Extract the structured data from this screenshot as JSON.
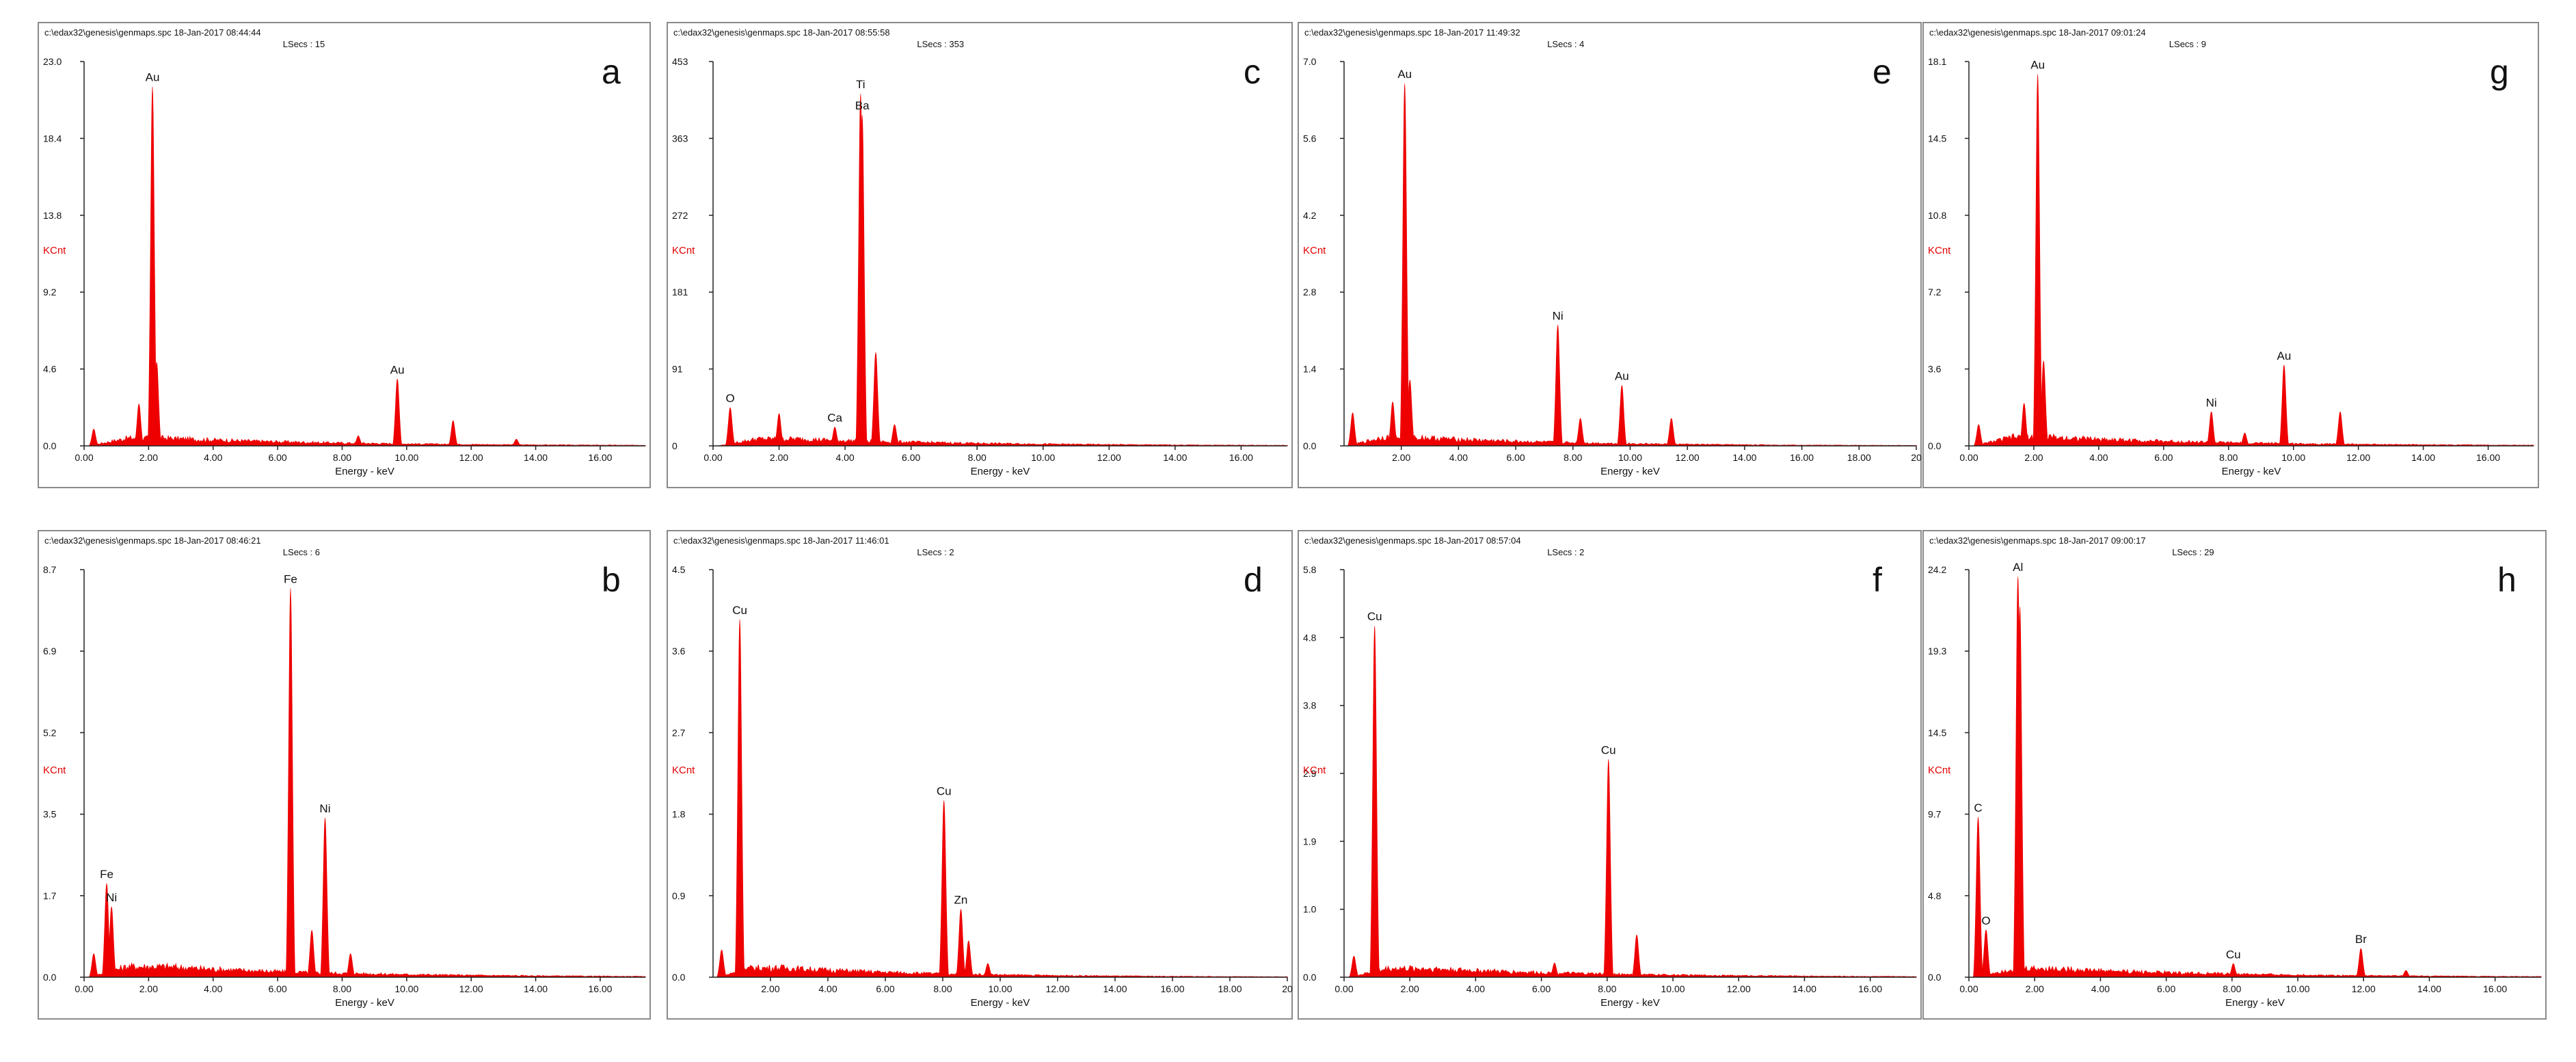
{
  "chart_data": [
    {
      "panel": "a",
      "type": "area",
      "header": "c:\\edax32\\genesis\\genmaps.spc  18-Jan-2017 08:44:44",
      "lsecs": "LSecs : 15",
      "ylabel": "KCnt",
      "xlabel": "Energy - keV",
      "xlim": [
        0,
        17.4
      ],
      "ylim": [
        0,
        23.0
      ],
      "xticks": [
        "0.00",
        "2.00",
        "4.00",
        "6.00",
        "8.00",
        "10.00",
        "12.00",
        "14.00",
        "16.00"
      ],
      "yticks": [
        "0.0",
        "4.6",
        "9.2",
        "13.8",
        "18.4",
        "23.0"
      ],
      "background": 0.45,
      "peaks": [
        {
          "x": 0.3,
          "y": 1.0,
          "label": ""
        },
        {
          "x": 1.7,
          "y": 2.5,
          "label": ""
        },
        {
          "x": 2.12,
          "y": 21.5,
          "label": "Au"
        },
        {
          "x": 2.25,
          "y": 5.0,
          "label": ""
        },
        {
          "x": 8.5,
          "y": 0.6,
          "label": ""
        },
        {
          "x": 9.71,
          "y": 4.0,
          "label": "Au"
        },
        {
          "x": 11.44,
          "y": 1.5,
          "label": ""
        },
        {
          "x": 13.4,
          "y": 0.4,
          "label": ""
        }
      ]
    },
    {
      "panel": "b",
      "type": "area",
      "header": "c:\\edax32\\genesis\\genmaps.spc  18-Jan-2017 08:46:21",
      "lsecs": "LSecs : 6",
      "ylabel": "KCnt",
      "xlabel": "Energy - keV",
      "xlim": [
        0,
        17.4
      ],
      "ylim": [
        0,
        8.7
      ],
      "xticks": [
        "0.00",
        "2.00",
        "4.00",
        "6.00",
        "8.00",
        "10.00",
        "12.00",
        "14.00",
        "16.00"
      ],
      "yticks": [
        "0.0",
        "1.7",
        "3.5",
        "5.2",
        "6.9",
        "8.7"
      ],
      "background": 0.22,
      "peaks": [
        {
          "x": 0.3,
          "y": 0.5,
          "label": ""
        },
        {
          "x": 0.7,
          "y": 2.0,
          "label": "Fe"
        },
        {
          "x": 0.85,
          "y": 1.5,
          "label": "Ni"
        },
        {
          "x": 6.4,
          "y": 8.3,
          "label": "Fe"
        },
        {
          "x": 7.06,
          "y": 1.0,
          "label": ""
        },
        {
          "x": 7.47,
          "y": 3.4,
          "label": "Ni"
        },
        {
          "x": 8.26,
          "y": 0.5,
          "label": ""
        }
      ]
    },
    {
      "panel": "c",
      "type": "area",
      "header": "c:\\edax32\\genesis\\genmaps.spc  18-Jan-2017 08:55:58",
      "lsecs": "LSecs : 353",
      "ylabel": "KCnt",
      "xlabel": "Energy - keV",
      "xlim": [
        0,
        17.4
      ],
      "ylim": [
        0,
        453
      ],
      "xticks": [
        "0.00",
        "2.00",
        "4.00",
        "6.00",
        "8.00",
        "10.00",
        "12.00",
        "14.00",
        "16.00"
      ],
      "yticks": [
        "0",
        "91",
        "181",
        "272",
        "363",
        "453"
      ],
      "background": 8,
      "peaks": [
        {
          "x": 0.52,
          "y": 45,
          "label": "O"
        },
        {
          "x": 2.0,
          "y": 38,
          "label": ""
        },
        {
          "x": 3.69,
          "y": 22,
          "label": "Ca"
        },
        {
          "x": 4.47,
          "y": 415,
          "label": "Ti"
        },
        {
          "x": 4.52,
          "y": 390,
          "label": "Ba"
        },
        {
          "x": 4.93,
          "y": 110,
          "label": ""
        },
        {
          "x": 5.5,
          "y": 25,
          "label": ""
        }
      ]
    },
    {
      "panel": "d",
      "type": "area",
      "header": "c:\\edax32\\genesis\\genmaps.spc  18-Jan-2017 11:46:01",
      "lsecs": "LSecs : 2",
      "ylabel": "KCnt",
      "xlabel": "Energy - keV",
      "xlim": [
        0,
        20
      ],
      "ylim": [
        0,
        4.5
      ],
      "xticks": [
        "2.00",
        "4.00",
        "6.00",
        "8.00",
        "10.00",
        "12.00",
        "14.00",
        "16.00",
        "18.00",
        "20"
      ],
      "yticks": [
        "0.0",
        "0.9",
        "1.8",
        "2.7",
        "3.6",
        "4.5"
      ],
      "background": 0.1,
      "peaks": [
        {
          "x": 0.3,
          "y": 0.3,
          "label": ""
        },
        {
          "x": 0.93,
          "y": 3.95,
          "label": "Cu"
        },
        {
          "x": 8.04,
          "y": 1.95,
          "label": "Cu"
        },
        {
          "x": 8.63,
          "y": 0.75,
          "label": "Zn"
        },
        {
          "x": 8.9,
          "y": 0.4,
          "label": ""
        },
        {
          "x": 9.57,
          "y": 0.15,
          "label": ""
        }
      ]
    },
    {
      "panel": "e",
      "type": "area",
      "header": "c:\\edax32\\genesis\\genmaps.spc  18-Jan-2017 11:49:32",
      "lsecs": "LSecs : 4",
      "ylabel": "KCnt",
      "xlabel": "Energy - keV",
      "xlim": [
        0,
        20
      ],
      "ylim": [
        0,
        7.0
      ],
      "xticks": [
        "2.00",
        "4.00",
        "6.00",
        "8.00",
        "10.00",
        "12.00",
        "14.00",
        "16.00",
        "18.00",
        "20"
      ],
      "yticks": [
        "0.0",
        "1.4",
        "2.8",
        "4.2",
        "5.6",
        "7.0"
      ],
      "background": 0.15,
      "peaks": [
        {
          "x": 0.3,
          "y": 0.6,
          "label": ""
        },
        {
          "x": 1.7,
          "y": 0.8,
          "label": ""
        },
        {
          "x": 2.12,
          "y": 6.6,
          "label": "Au"
        },
        {
          "x": 2.3,
          "y": 1.2,
          "label": ""
        },
        {
          "x": 7.47,
          "y": 2.2,
          "label": "Ni"
        },
        {
          "x": 8.26,
          "y": 0.5,
          "label": ""
        },
        {
          "x": 9.71,
          "y": 1.1,
          "label": "Au"
        },
        {
          "x": 11.44,
          "y": 0.5,
          "label": ""
        }
      ]
    },
    {
      "panel": "f",
      "type": "area",
      "header": "c:\\edax32\\genesis\\genmaps.spc  18-Jan-2017 08:57:04",
      "lsecs": "LSecs : 2",
      "ylabel": "KCnt",
      "xlabel": "Energy - keV",
      "xlim": [
        0,
        17.4
      ],
      "ylim": [
        0,
        5.8
      ],
      "xticks": [
        "0.00",
        "2.00",
        "4.00",
        "6.00",
        "8.00",
        "10.00",
        "12.00",
        "14.00",
        "16.00"
      ],
      "yticks": [
        "0.0",
        "1.0",
        "1.9",
        "2.9",
        "3.8",
        "4.8",
        "5.8"
      ],
      "background": 0.12,
      "peaks": [
        {
          "x": 0.3,
          "y": 0.3,
          "label": ""
        },
        {
          "x": 0.93,
          "y": 5.0,
          "label": "Cu"
        },
        {
          "x": 6.4,
          "y": 0.2,
          "label": ""
        },
        {
          "x": 8.04,
          "y": 3.1,
          "label": "Cu"
        },
        {
          "x": 8.9,
          "y": 0.6,
          "label": ""
        }
      ]
    },
    {
      "panel": "g",
      "type": "area",
      "header": "c:\\edax32\\genesis\\genmaps.spc  18-Jan-2017 09:01:24",
      "lsecs": "LSecs : 9",
      "ylabel": "KCnt",
      "xlabel": "Energy - keV",
      "xlim": [
        0,
        17.4
      ],
      "ylim": [
        0,
        18.1
      ],
      "xticks": [
        "0.00",
        "2.00",
        "4.00",
        "6.00",
        "8.00",
        "10.00",
        "12.00",
        "14.00",
        "16.00"
      ],
      "yticks": [
        "0.0",
        "3.6",
        "7.2",
        "10.8",
        "14.5",
        "18.1"
      ],
      "background": 0.4,
      "peaks": [
        {
          "x": 0.3,
          "y": 1.0,
          "label": ""
        },
        {
          "x": 1.7,
          "y": 2.0,
          "label": ""
        },
        {
          "x": 2.12,
          "y": 17.5,
          "label": "Au"
        },
        {
          "x": 2.3,
          "y": 4.0,
          "label": ""
        },
        {
          "x": 7.47,
          "y": 1.6,
          "label": "Ni"
        },
        {
          "x": 8.5,
          "y": 0.6,
          "label": ""
        },
        {
          "x": 9.71,
          "y": 3.8,
          "label": "Au"
        },
        {
          "x": 11.44,
          "y": 1.6,
          "label": ""
        }
      ]
    },
    {
      "panel": "h",
      "type": "area",
      "header": "c:\\edax32\\genesis\\genmaps.spc  18-Jan-2017 09:00:17",
      "lsecs": "LSecs : 29",
      "ylabel": "KCnt",
      "xlabel": "Energy - keV",
      "xlim": [
        0,
        17.4
      ],
      "ylim": [
        0,
        24.2
      ],
      "xticks": [
        "0.00",
        "2.00",
        "4.00",
        "6.00",
        "8.00",
        "10.00",
        "12.00",
        "14.00",
        "16.00"
      ],
      "yticks": [
        "0.0",
        "4.8",
        "9.7",
        "14.5",
        "19.3",
        "24.2"
      ],
      "background": 0.5,
      "peaks": [
        {
          "x": 0.28,
          "y": 9.5,
          "label": "C"
        },
        {
          "x": 0.52,
          "y": 2.8,
          "label": "O"
        },
        {
          "x": 1.49,
          "y": 23.8,
          "label": "Al"
        },
        {
          "x": 1.55,
          "y": 22.0,
          "label": ""
        },
        {
          "x": 8.04,
          "y": 0.8,
          "label": "Cu"
        },
        {
          "x": 11.92,
          "y": 1.7,
          "label": "Br"
        },
        {
          "x": 13.29,
          "y": 0.4,
          "label": ""
        }
      ]
    }
  ]
}
